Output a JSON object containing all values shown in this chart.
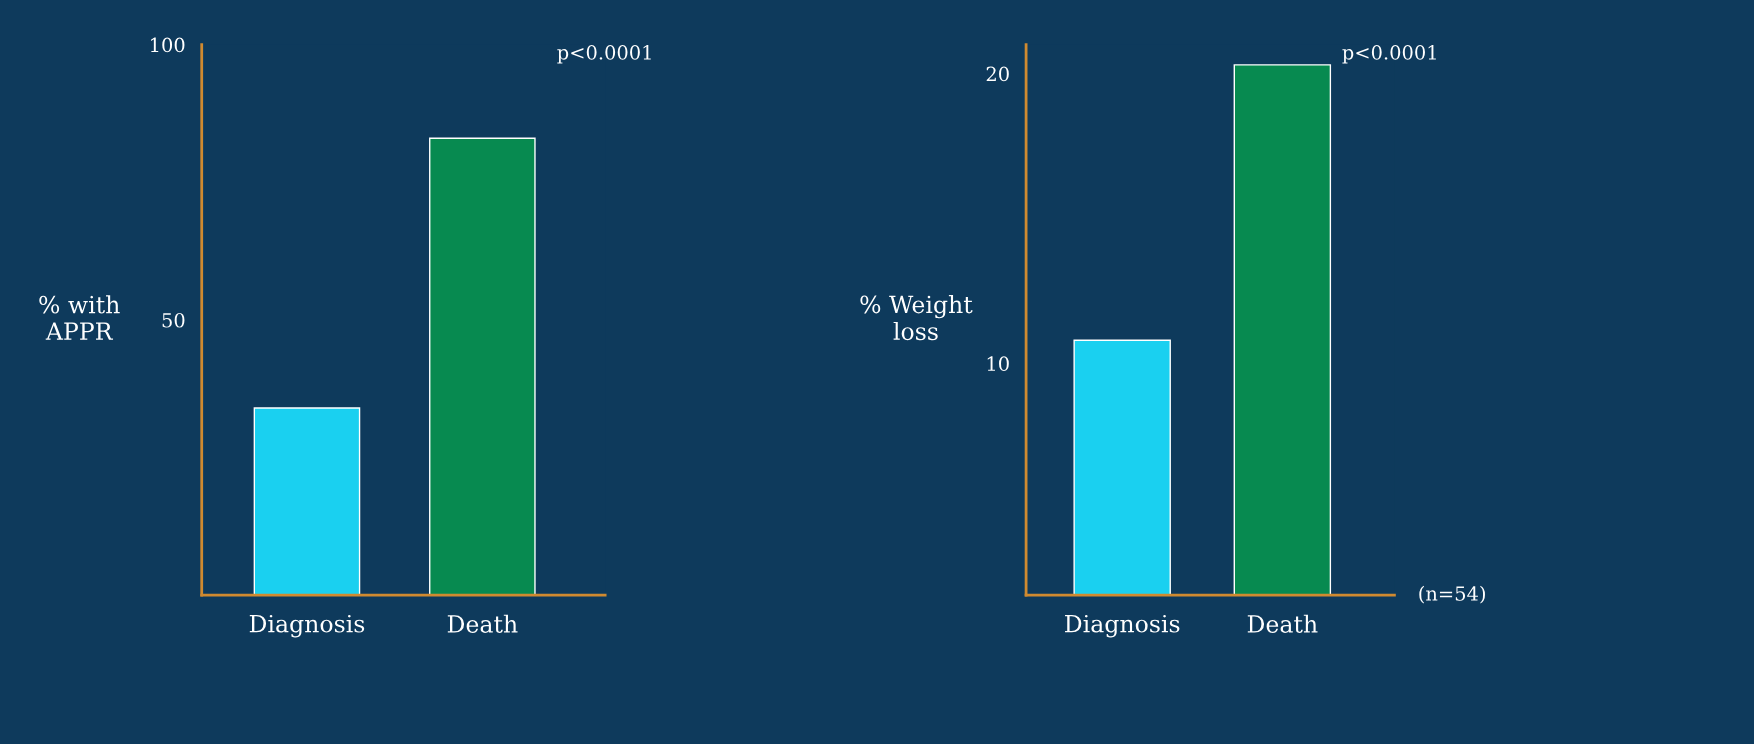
{
  "chart_data": [
    {
      "type": "bar",
      "ylabel": "% with\nAPPR",
      "categories": [
        "Diagnosis",
        "Death"
      ],
      "values": [
        34,
        83
      ],
      "colors": [
        "#1ad0f0",
        "#078a50"
      ],
      "ylim": [
        0,
        100
      ],
      "yticks": [
        50,
        100
      ],
      "annotations": [
        "p<0.0001"
      ]
    },
    {
      "type": "bar",
      "ylabel": "% Weight\nloss",
      "categories": [
        "Diagnosis",
        "Death"
      ],
      "values": [
        10.8,
        20.3
      ],
      "colors": [
        "#1ad0f0",
        "#078a50"
      ],
      "ylim": [
        2,
        21
      ],
      "yticks": [
        10,
        20
      ],
      "annotations": [
        "p<0.0001",
        "(n=54)"
      ]
    }
  ]
}
